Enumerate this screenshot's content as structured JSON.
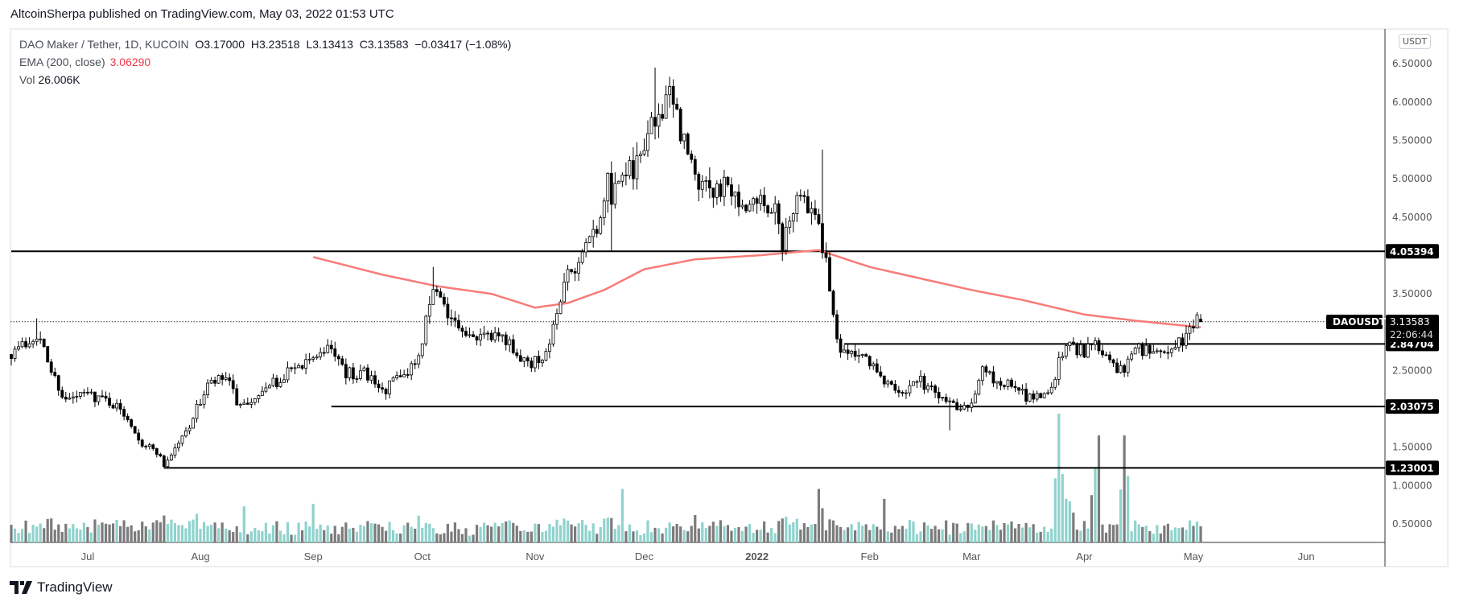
{
  "header": {
    "published": "AltcoinSherpa published on TradingView.com, May 03, 2022 01:53 UTC"
  },
  "legend": {
    "symbol": "DAO Maker / Tether, 1D, KUCOIN",
    "open": "O3.17000",
    "high": "H3.23518",
    "low": "L3.13413",
    "close": "C3.13583",
    "change": "−0.03417 (−1.08%)",
    "ema_label": "EMA (200, close)",
    "ema_value": "3.06290",
    "vol_label": "Vol",
    "vol_value": "26.006K"
  },
  "axis": {
    "unit": "USDT",
    "ticks": [
      "6.50000",
      "6.00000",
      "5.50000",
      "5.00000",
      "4.50000",
      "3.50000",
      "2.50000",
      "1.50000",
      "1.00000",
      "0.50000"
    ],
    "time_labels": [
      {
        "label": "Jul",
        "date": "2021-07-01"
      },
      {
        "label": "Aug",
        "date": "2021-08-01"
      },
      {
        "label": "Sep",
        "date": "2021-09-01"
      },
      {
        "label": "Oct",
        "date": "2021-10-01"
      },
      {
        "label": "Nov",
        "date": "2021-11-01"
      },
      {
        "label": "Dec",
        "date": "2021-12-01"
      },
      {
        "label": "2022",
        "date": "2022-01-01",
        "bold": true
      },
      {
        "label": "Feb",
        "date": "2022-02-01"
      },
      {
        "label": "Mar",
        "date": "2022-03-01"
      },
      {
        "label": "Apr",
        "date": "2022-04-01"
      },
      {
        "label": "May",
        "date": "2022-05-01"
      },
      {
        "label": "Jun",
        "date": "2022-06-01"
      }
    ]
  },
  "price_tag": {
    "symbol": "DAOUSDT",
    "price": "3.13583",
    "countdown": "22:06:44"
  },
  "footer": {
    "brand": "TradingView"
  },
  "colors": {
    "up_volume": "#8fd3cd",
    "down_volume": "#7b7b7b",
    "ema": "#f77c78",
    "candle": "#000000"
  },
  "chart_data": {
    "type": "candlestick",
    "title": "DAO Maker / Tether, 1D, KUCOIN",
    "start_date": "2021-06-10",
    "end_date": "2022-05-03",
    "last_candle": {
      "open": 3.17,
      "high": 3.23518,
      "low": 3.13413,
      "close": 3.13583,
      "volume_k": 26.006
    },
    "close_anchors": [
      [
        "2021-06-10",
        2.75
      ],
      [
        "2021-06-14",
        2.85
      ],
      [
        "2021-06-17",
        3.0
      ],
      [
        "2021-06-21",
        2.5
      ],
      [
        "2021-06-25",
        2.1
      ],
      [
        "2021-07-01",
        2.2
      ],
      [
        "2021-07-07",
        2.1
      ],
      [
        "2021-07-12",
        1.9
      ],
      [
        "2021-07-16",
        1.55
      ],
      [
        "2021-07-20",
        1.45
      ],
      [
        "2021-07-22",
        1.27
      ],
      [
        "2021-07-28",
        1.7
      ],
      [
        "2021-08-03",
        2.3
      ],
      [
        "2021-08-08",
        2.4
      ],
      [
        "2021-08-12",
        2.0
      ],
      [
        "2021-08-18",
        2.2
      ],
      [
        "2021-08-23",
        2.4
      ],
      [
        "2021-08-28",
        2.55
      ],
      [
        "2021-09-02",
        2.65
      ],
      [
        "2021-09-05",
        2.85
      ],
      [
        "2021-09-07",
        2.7
      ],
      [
        "2021-09-10",
        2.45
      ],
      [
        "2021-09-15",
        2.5
      ],
      [
        "2021-09-20",
        2.2
      ],
      [
        "2021-09-25",
        2.45
      ],
      [
        "2021-09-30",
        2.65
      ],
      [
        "2021-10-03",
        3.4
      ],
      [
        "2021-10-05",
        3.6
      ],
      [
        "2021-10-08",
        3.2
      ],
      [
        "2021-10-12",
        2.95
      ],
      [
        "2021-10-18",
        2.9
      ],
      [
        "2021-10-25",
        2.9
      ],
      [
        "2021-10-28",
        2.6
      ],
      [
        "2021-11-01",
        2.6
      ],
      [
        "2021-11-05",
        2.85
      ],
      [
        "2021-11-08",
        3.5
      ],
      [
        "2021-11-11",
        3.8
      ],
      [
        "2021-11-14",
        4.0
      ],
      [
        "2021-11-18",
        4.3
      ],
      [
        "2021-11-21",
        4.9
      ],
      [
        "2021-11-22",
        4.6
      ],
      [
        "2021-11-25",
        5.2
      ],
      [
        "2021-11-28",
        5.0
      ],
      [
        "2021-12-01",
        5.5
      ],
      [
        "2021-12-04",
        5.7
      ],
      [
        "2021-12-07",
        6.1
      ],
      [
        "2021-12-10",
        5.8
      ],
      [
        "2021-12-13",
        5.3
      ],
      [
        "2021-12-16",
        4.9
      ],
      [
        "2021-12-20",
        4.8
      ],
      [
        "2021-12-24",
        4.9
      ],
      [
        "2021-12-28",
        4.6
      ],
      [
        "2022-01-01",
        4.6
      ],
      [
        "2022-01-05",
        4.7
      ],
      [
        "2022-01-08",
        4.2
      ],
      [
        "2022-01-11",
        4.5
      ],
      [
        "2022-01-13",
        4.8
      ],
      [
        "2022-01-16",
        4.6
      ],
      [
        "2022-01-18",
        4.3
      ],
      [
        "2022-01-20",
        3.9
      ],
      [
        "2022-01-22",
        3.2
      ],
      [
        "2022-01-24",
        2.8
      ],
      [
        "2022-01-27",
        2.75
      ],
      [
        "2022-02-01",
        2.6
      ],
      [
        "2022-02-05",
        2.3
      ],
      [
        "2022-02-10",
        2.25
      ],
      [
        "2022-02-15",
        2.35
      ],
      [
        "2022-02-20",
        2.2
      ],
      [
        "2022-02-25",
        2.05
      ],
      [
        "2022-03-01",
        2.1
      ],
      [
        "2022-03-04",
        2.5
      ],
      [
        "2022-03-08",
        2.35
      ],
      [
        "2022-03-12",
        2.3
      ],
      [
        "2022-03-16",
        2.15
      ],
      [
        "2022-03-22",
        2.2
      ],
      [
        "2022-03-25",
        2.6
      ],
      [
        "2022-03-28",
        2.85
      ],
      [
        "2022-04-01",
        2.75
      ],
      [
        "2022-04-04",
        2.9
      ],
      [
        "2022-04-08",
        2.6
      ],
      [
        "2022-04-12",
        2.45
      ],
      [
        "2022-04-14",
        2.8
      ],
      [
        "2022-04-18",
        2.75
      ],
      [
        "2022-04-22",
        2.75
      ],
      [
        "2022-04-26",
        2.8
      ],
      [
        "2022-04-29",
        2.95
      ],
      [
        "2022-05-01",
        3.1
      ],
      [
        "2022-05-03",
        3.13583
      ]
    ],
    "extremes": [
      [
        "2021-06-17",
        3.18,
        null
      ],
      [
        "2021-07-22",
        null,
        1.23
      ],
      [
        "2021-10-04",
        3.85,
        null
      ],
      [
        "2021-11-22",
        null,
        4.05
      ],
      [
        "2021-12-04",
        6.45,
        null
      ],
      [
        "2022-01-19",
        5.38,
        null
      ],
      [
        "2022-02-23",
        null,
        1.72
      ]
    ],
    "volume_spikes_k": [
      [
        "2021-08-13",
        58
      ],
      [
        "2021-09-01",
        62
      ],
      [
        "2021-09-30",
        43
      ],
      [
        "2021-11-25",
        86
      ],
      [
        "2021-12-15",
        44
      ],
      [
        "2022-01-18",
        86
      ],
      [
        "2022-01-19",
        55
      ],
      [
        "2022-02-05",
        70
      ],
      [
        "2022-03-24",
        103
      ],
      [
        "2022-03-25",
        207
      ],
      [
        "2022-03-26",
        110
      ],
      [
        "2022-03-27",
        70
      ],
      [
        "2022-03-28",
        66
      ],
      [
        "2022-03-29",
        48
      ],
      [
        "2022-04-03",
        76
      ],
      [
        "2022-04-04",
        119
      ],
      [
        "2022-04-05",
        172
      ],
      [
        "2022-04-11",
        85
      ],
      [
        "2022-04-12",
        172
      ],
      [
        "2022-04-13",
        107
      ]
    ],
    "ema200": [
      [
        "2021-09-01",
        3.98
      ],
      [
        "2021-09-20",
        3.75
      ],
      [
        "2021-10-05",
        3.6
      ],
      [
        "2021-10-20",
        3.5
      ],
      [
        "2021-11-01",
        3.32
      ],
      [
        "2021-11-10",
        3.38
      ],
      [
        "2021-11-20",
        3.55
      ],
      [
        "2021-12-01",
        3.82
      ],
      [
        "2021-12-15",
        3.95
      ],
      [
        "2022-01-01",
        4.0
      ],
      [
        "2022-01-18",
        4.07
      ],
      [
        "2022-02-01",
        3.85
      ],
      [
        "2022-02-15",
        3.7
      ],
      [
        "2022-03-01",
        3.55
      ],
      [
        "2022-03-15",
        3.42
      ],
      [
        "2022-04-01",
        3.23
      ],
      [
        "2022-04-15",
        3.15
      ],
      [
        "2022-05-03",
        3.0629
      ]
    ],
    "levels": [
      {
        "price": 4.05394,
        "label": "4.05394",
        "from": "2021-06-10"
      },
      {
        "price": 2.84704,
        "label": "2.84704",
        "from": "2022-01-25"
      },
      {
        "price": 2.03075,
        "label": "2.03075",
        "from": "2021-09-06"
      },
      {
        "price": 1.23001,
        "label": "1.23001",
        "from": "2021-07-22"
      }
    ],
    "ylim": [
      0.5,
      6.5
    ]
  }
}
